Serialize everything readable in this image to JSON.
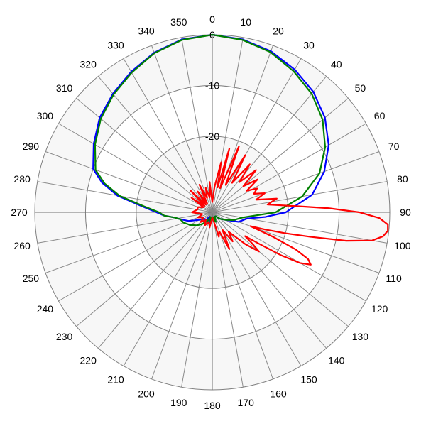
{
  "chart_data": {
    "type": "polar-line",
    "angle_ticks": [
      "0",
      "10",
      "20",
      "30",
      "40",
      "50",
      "60",
      "70",
      "80",
      "90",
      "100",
      "110",
      "120",
      "130",
      "140",
      "150",
      "160",
      "170",
      "180",
      "190",
      "200",
      "210",
      "220",
      "230",
      "240",
      "250",
      "260",
      "270",
      "280",
      "290",
      "300",
      "310",
      "320",
      "330",
      "340",
      "350"
    ],
    "radial_ticks": [
      "0",
      "-10",
      "-20"
    ],
    "r_range_db": [
      -35,
      0
    ],
    "angular_grid_step_deg": 10,
    "grid": true,
    "series": [
      {
        "color": "#0000ff",
        "points": [
          [
            0,
            0
          ],
          [
            10,
            -0.4
          ],
          [
            20,
            -1.2
          ],
          [
            30,
            -2.5
          ],
          [
            40,
            -4.0
          ],
          [
            50,
            -6.0
          ],
          [
            60,
            -8.5
          ],
          [
            70,
            -11.5
          ],
          [
            80,
            -15.0
          ],
          [
            90,
            -20.5
          ],
          [
            95,
            -24.5
          ],
          [
            100,
            -28
          ],
          [
            110,
            -29.5
          ],
          [
            120,
            -32
          ],
          [
            130,
            -33
          ],
          [
            140,
            -34
          ],
          [
            150,
            -34
          ],
          [
            160,
            -33
          ],
          [
            170,
            -34
          ],
          [
            180,
            -34
          ],
          [
            190,
            -33
          ],
          [
            200,
            -33
          ],
          [
            210,
            -34
          ],
          [
            220,
            -33
          ],
          [
            230,
            -33
          ],
          [
            240,
            -32
          ],
          [
            250,
            -30
          ],
          [
            258,
            -28.5
          ],
          [
            262,
            -27.5
          ],
          [
            266,
            -25.5
          ],
          [
            270,
            -24
          ],
          [
            275,
            -21
          ],
          [
            280,
            -16
          ],
          [
            285,
            -12.5
          ],
          [
            290,
            -10
          ],
          [
            300,
            -8
          ],
          [
            310,
            -6
          ],
          [
            320,
            -4.5
          ],
          [
            330,
            -3
          ],
          [
            340,
            -1.5
          ],
          [
            350,
            -0.4
          ],
          [
            360,
            0
          ]
        ]
      },
      {
        "color": "#008000",
        "points": [
          [
            0,
            0
          ],
          [
            10,
            -0.5
          ],
          [
            20,
            -1.4
          ],
          [
            30,
            -2.9
          ],
          [
            40,
            -4.5
          ],
          [
            50,
            -6.6
          ],
          [
            60,
            -9.3
          ],
          [
            70,
            -12.5
          ],
          [
            80,
            -17.0
          ],
          [
            90,
            -22.5
          ],
          [
            100,
            -29
          ],
          [
            110,
            -30.5
          ],
          [
            120,
            -32
          ],
          [
            130,
            -33
          ],
          [
            140,
            -34
          ],
          [
            150,
            -34
          ],
          [
            160,
            -33
          ],
          [
            170,
            -34
          ],
          [
            180,
            -34
          ],
          [
            190,
            -33
          ],
          [
            200,
            -34
          ],
          [
            210,
            -33
          ],
          [
            220,
            -32
          ],
          [
            230,
            -31
          ],
          [
            240,
            -30
          ],
          [
            250,
            -29
          ],
          [
            258,
            -28.5
          ],
          [
            262,
            -27.5
          ],
          [
            266,
            -25.5
          ],
          [
            270,
            -24.5
          ],
          [
            275,
            -21.5
          ],
          [
            280,
            -16.5
          ],
          [
            285,
            -13
          ],
          [
            290,
            -10.5
          ],
          [
            300,
            -8.3
          ],
          [
            310,
            -6.3
          ],
          [
            320,
            -4.7
          ],
          [
            330,
            -3.2
          ],
          [
            340,
            -1.6
          ],
          [
            350,
            -0.5
          ],
          [
            360,
            0
          ]
        ]
      },
      {
        "color": "#ff0000",
        "points": [
          [
            0,
            -33
          ],
          [
            5,
            -30
          ],
          [
            10,
            -25
          ],
          [
            12,
            -30
          ],
          [
            15,
            -22
          ],
          [
            18,
            -30
          ],
          [
            22,
            -21
          ],
          [
            26,
            -29
          ],
          [
            30,
            -22
          ],
          [
            34,
            -28
          ],
          [
            38,
            -23
          ],
          [
            42,
            -27
          ],
          [
            46,
            -23
          ],
          [
            50,
            -27
          ],
          [
            54,
            -24
          ],
          [
            58,
            -27
          ],
          [
            62,
            -25
          ],
          [
            66,
            -26
          ],
          [
            70,
            -24
          ],
          [
            74,
            -26
          ],
          [
            78,
            -22
          ],
          [
            82,
            -24
          ],
          [
            86,
            -18
          ],
          [
            88,
            -12
          ],
          [
            90,
            -6
          ],
          [
            92,
            -2
          ],
          [
            94,
            -0.3
          ],
          [
            96,
            -0.2
          ],
          [
            98,
            -1
          ],
          [
            100,
            -3
          ],
          [
            102,
            -8
          ],
          [
            104,
            -15
          ],
          [
            106,
            -20
          ],
          [
            108,
            -24
          ],
          [
            110,
            -27
          ],
          [
            112,
            -22
          ],
          [
            114,
            -17
          ],
          [
            116,
            -14
          ],
          [
            118,
            -13
          ],
          [
            120,
            -15
          ],
          [
            122,
            -19
          ],
          [
            124,
            -24
          ],
          [
            126,
            -27
          ],
          [
            128,
            -25
          ],
          [
            130,
            -23
          ],
          [
            134,
            -26
          ],
          [
            140,
            -30
          ],
          [
            145,
            -28
          ],
          [
            150,
            -31
          ],
          [
            155,
            -27
          ],
          [
            160,
            -31
          ],
          [
            165,
            -30
          ],
          [
            170,
            -33
          ],
          [
            180,
            -34
          ],
          [
            190,
            -32
          ],
          [
            200,
            -33
          ],
          [
            210,
            -32
          ],
          [
            220,
            -33
          ],
          [
            230,
            -32
          ],
          [
            240,
            -33
          ],
          [
            250,
            -32
          ],
          [
            260,
            -33
          ],
          [
            270,
            -31
          ],
          [
            280,
            -32
          ],
          [
            290,
            -32
          ],
          [
            300,
            -33
          ],
          [
            305,
            -30
          ],
          [
            310,
            -33
          ],
          [
            315,
            -29
          ],
          [
            320,
            -33
          ],
          [
            325,
            -30
          ],
          [
            330,
            -33
          ],
          [
            335,
            -29
          ],
          [
            340,
            -32
          ],
          [
            345,
            -30
          ],
          [
            350,
            -32
          ],
          [
            355,
            -29
          ],
          [
            360,
            -33
          ]
        ]
      }
    ]
  }
}
